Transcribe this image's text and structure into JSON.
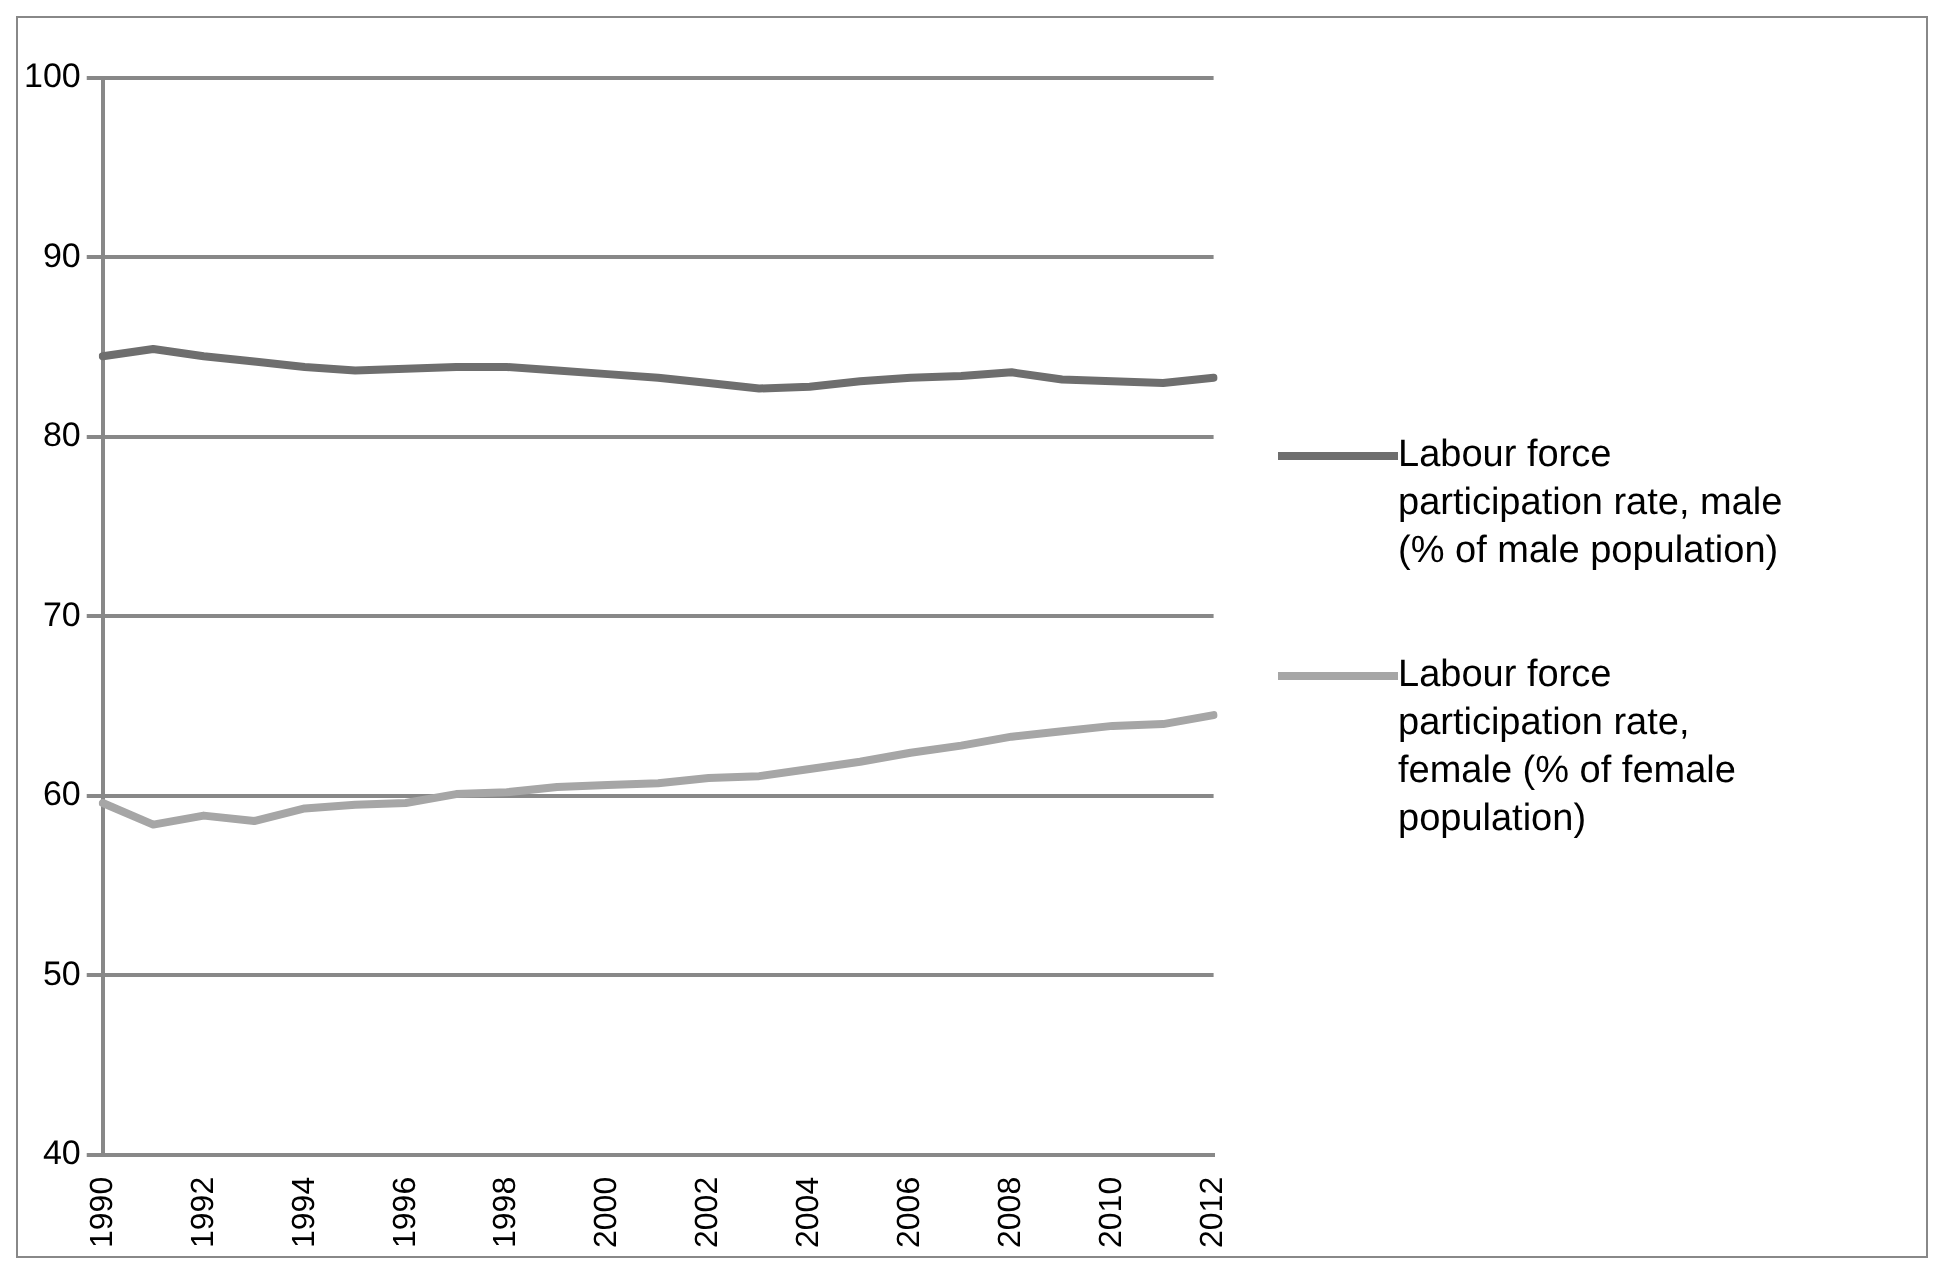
{
  "chart_data": {
    "type": "line",
    "categories": [
      "1990",
      null,
      "1992",
      null,
      "1994",
      null,
      "1996",
      null,
      "1998",
      null,
      "2000",
      null,
      "2002",
      null,
      "2004",
      null,
      "2006",
      null,
      "2008",
      null,
      "2010",
      null,
      "2012"
    ],
    "series": [
      {
        "name": "Labour force participation rate, male (% of male population)",
        "color": "#6e6e6e",
        "values": [
          84.5,
          84.9,
          84.5,
          84.2,
          83.9,
          83.7,
          83.8,
          83.9,
          83.9,
          83.7,
          83.5,
          83.3,
          83.0,
          82.7,
          82.8,
          83.1,
          83.3,
          83.4,
          83.6,
          83.2,
          83.1,
          83.0,
          83.3
        ]
      },
      {
        "name": "Labour force participation rate, female (% of female population)",
        "color": "#a6a6a6",
        "values": [
          59.6,
          58.4,
          58.9,
          58.6,
          59.3,
          59.5,
          59.6,
          60.1,
          60.2,
          60.5,
          60.6,
          60.7,
          61.0,
          61.1,
          61.5,
          61.9,
          62.4,
          62.8,
          63.3,
          63.6,
          63.9,
          64.0,
          64.5
        ]
      }
    ],
    "ylim": [
      40,
      100
    ],
    "yticks": [
      40,
      50,
      60,
      70,
      80,
      90,
      100
    ],
    "grid": "y",
    "legend": "right",
    "marker": "none",
    "line_style": "solid"
  }
}
